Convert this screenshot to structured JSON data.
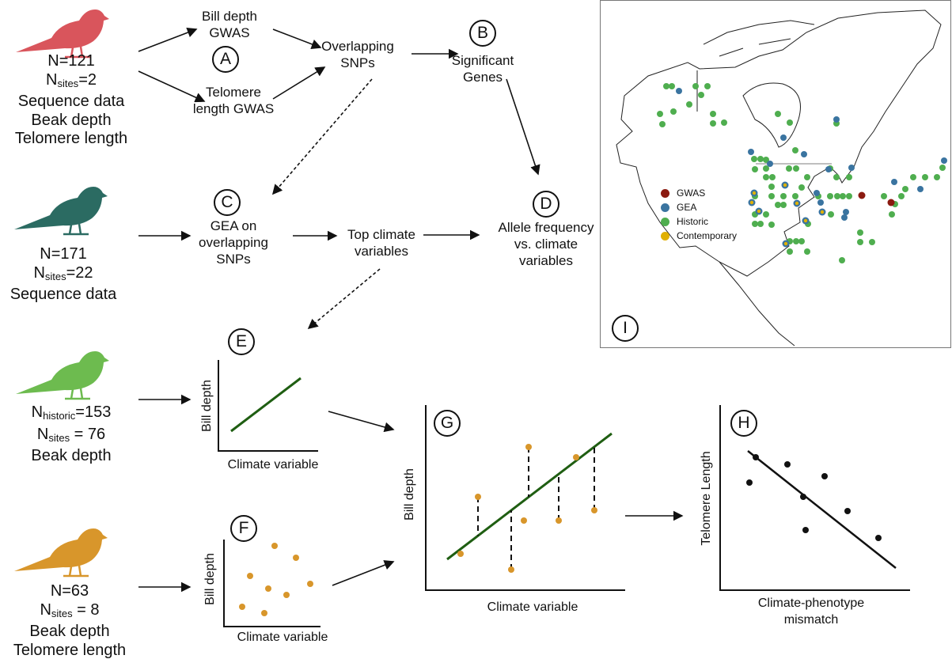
{
  "birds": [
    {
      "color": "#d9555c",
      "lines": [
        {
          "text": "N=121"
        },
        {
          "pre": "N",
          "sub": "sites",
          "post": "=2"
        },
        {
          "text": "Sequence data"
        },
        {
          "text": "Beak depth"
        },
        {
          "text": "Telomere length"
        }
      ]
    },
    {
      "color": "#2b6b62",
      "lines": [
        {
          "text": "N=171"
        },
        {
          "pre": "N",
          "sub": "sites",
          "post": "=22"
        },
        {
          "text": "Sequence data"
        }
      ]
    },
    {
      "color": "#6dbb4f",
      "lines": [
        {
          "pre": "N",
          "sub": "historic",
          "post": "=153"
        },
        {
          "pre": "N",
          "sub": "sites",
          "post": " = 76"
        },
        {
          "text": "Beak depth"
        }
      ]
    },
    {
      "color": "#d8962b",
      "lines": [
        {
          "text": "N=63"
        },
        {
          "pre": "N",
          "sub": "sites",
          "post": " = 8"
        },
        {
          "text": "Beak depth"
        },
        {
          "text": "Telomere length"
        }
      ]
    }
  ],
  "steps": {
    "bill_gwas": [
      "Bill depth",
      "GWAS"
    ],
    "telomere_gwas": [
      "Telomere",
      "length GWAS"
    ],
    "overlapping": [
      "Overlapping",
      "SNPs"
    ],
    "genes": [
      "Significant",
      "Genes"
    ],
    "gea": [
      "GEA on",
      "overlapping",
      "SNPs"
    ],
    "top_climate": [
      "Top climate",
      "variables"
    ],
    "allele": [
      "Allele frequency",
      "vs. climate",
      "variables"
    ]
  },
  "panels": {
    "A": "A",
    "B": "B",
    "C": "C",
    "D": "D",
    "E": "E",
    "F": "F",
    "G": "G",
    "H": "H",
    "I": "I"
  },
  "plots": {
    "E": {
      "ylabel": "Bill depth",
      "xlabel": "Climate variable"
    },
    "F": {
      "ylabel": "Bill depth",
      "xlabel": "Climate variable"
    },
    "G": {
      "ylabel": "Bill depth",
      "xlabel": "Climate variable"
    },
    "H": {
      "ylabel": "Telomere Length",
      "xlabel": [
        "Climate-phenotype",
        "mismatch"
      ]
    }
  },
  "map": {
    "legend": [
      {
        "label": "GWAS",
        "color": "#8b1a10"
      },
      {
        "label": "GEA",
        "color": "#3a74a0"
      },
      {
        "label": "Historic",
        "color": "#4fae4f"
      },
      {
        "label": "Contemporary",
        "color": "#e0b000"
      }
    ]
  }
}
